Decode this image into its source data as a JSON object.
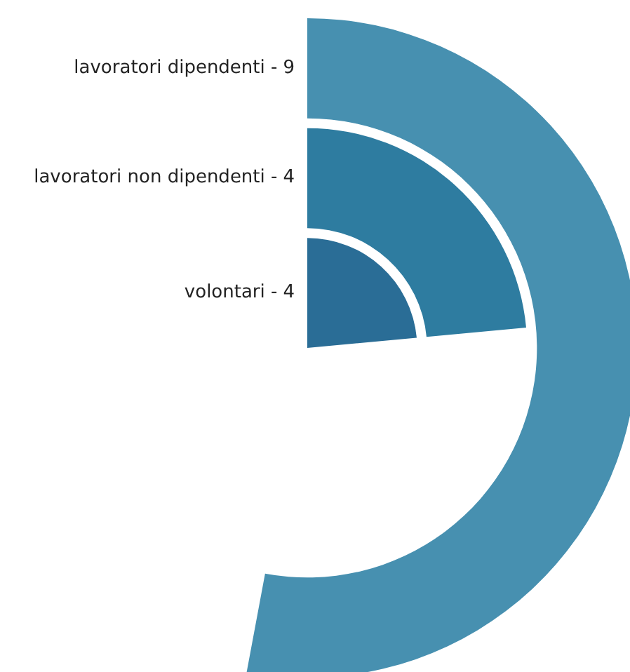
{
  "chart_data": {
    "type": "other",
    "categories": [
      "lavoratori dipendenti -",
      "lavoratori non dipendenti -",
      "volontari -"
    ],
    "values": [
      9,
      4,
      4
    ],
    "colors": [
      "#4790b0",
      "#2e7ca0",
      "#2a6d96"
    ],
    "data_labels": true
  }
}
